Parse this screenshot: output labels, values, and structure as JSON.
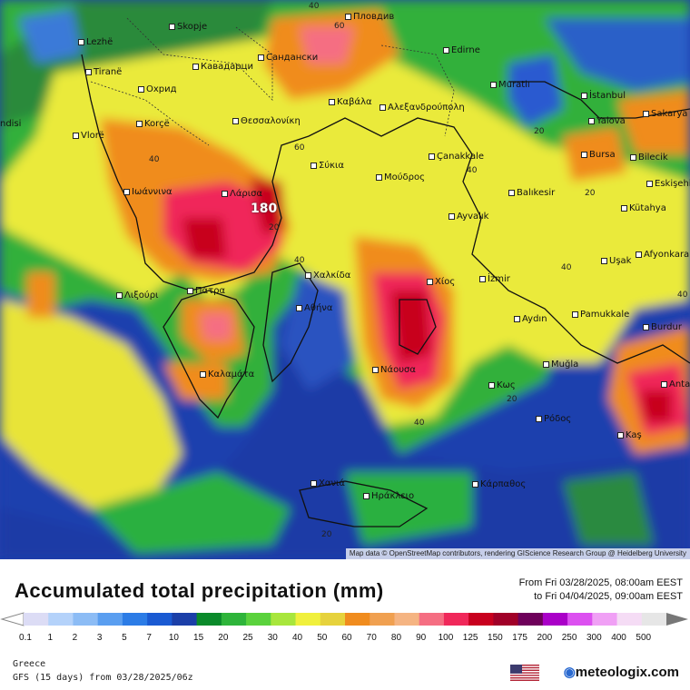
{
  "map": {
    "attribution": "Map data © OpenStreetMap contributors, rendering GIScience Research Group @ Heidelberg University",
    "max_label": "180",
    "cities": [
      {
        "name": "Lezhë"
      },
      {
        "name": "Skopje"
      },
      {
        "name": "Пловдив"
      },
      {
        "name": "Tiranë"
      },
      {
        "name": "Кавадарци"
      },
      {
        "name": "Сандански"
      },
      {
        "name": "Edirne"
      },
      {
        "name": "Охрид"
      },
      {
        "name": "Korçë"
      },
      {
        "name": "Καβάλα"
      },
      {
        "name": "Αλεξανδρούπολη"
      },
      {
        "name": "Muratlı"
      },
      {
        "name": "İstanbul"
      },
      {
        "name": "ndisi"
      },
      {
        "name": "Vlorë"
      },
      {
        "name": "Θεσσαλονίκη"
      },
      {
        "name": "Yalova"
      },
      {
        "name": "Sakarya"
      },
      {
        "name": "Çanakkale"
      },
      {
        "name": "Bursa"
      },
      {
        "name": "Bilecik"
      },
      {
        "name": "Σύκια"
      },
      {
        "name": "Μούδρος"
      },
      {
        "name": "Balıkesir"
      },
      {
        "name": "Eskişehir"
      },
      {
        "name": "Ιωάννινα"
      },
      {
        "name": "Λάρισα"
      },
      {
        "name": "Ayvalık"
      },
      {
        "name": "Kütahya"
      },
      {
        "name": "Χαλκίδα"
      },
      {
        "name": "Afyonkarahisar"
      },
      {
        "name": "Uşak"
      },
      {
        "name": "Χίος"
      },
      {
        "name": "İzmir"
      },
      {
        "name": "Λιξούρι"
      },
      {
        "name": "Πάτρα"
      },
      {
        "name": "Αθήνα"
      },
      {
        "name": "Aydın"
      },
      {
        "name": "Pamukkale"
      },
      {
        "name": "Burdur"
      },
      {
        "name": "Καλαμάτα"
      },
      {
        "name": "Νάουσα"
      },
      {
        "name": "Muğla"
      },
      {
        "name": "Κως"
      },
      {
        "name": "Antal"
      },
      {
        "name": "Ρόδος"
      },
      {
        "name": "Kaş"
      },
      {
        "name": "Χανιά"
      },
      {
        "name": "Κάρπαθος"
      },
      {
        "name": "Ηράκλειο"
      }
    ],
    "contour_labels": [
      "40",
      "60",
      "60",
      "20",
      "40",
      "20",
      "40",
      "40",
      "20",
      "40",
      "40",
      "40",
      "20",
      "20"
    ]
  },
  "legend": {
    "title": "Accumulated total precipitation (mm)",
    "from": "From Fri 03/28/2025, 08:00am EEST",
    "to": "to Fri 04/04/2025, 09:00am EEST",
    "ticks": [
      "0.1",
      "1",
      "2",
      "3",
      "5",
      "7",
      "10",
      "15",
      "20",
      "25",
      "30",
      "40",
      "50",
      "60",
      "70",
      "80",
      "90",
      "100",
      "125",
      "150",
      "175",
      "200",
      "250",
      "300",
      "400",
      "500"
    ],
    "colors": [
      "#dcdcf5",
      "#b4d2fa",
      "#8cbcf5",
      "#5a9ef0",
      "#2c7ce6",
      "#1a5ad2",
      "#1b3fa8",
      "#0a8a2a",
      "#2eb43a",
      "#5ad23c",
      "#a8e63c",
      "#f0f03c",
      "#e6d23c",
      "#f08c1e",
      "#f0a050",
      "#f5b482",
      "#f56e82",
      "#f0285a",
      "#c8001e",
      "#a00028",
      "#6e005a",
      "#aa00c8",
      "#dc50f0",
      "#f0a0f5",
      "#f5dcf5",
      "#e6e6e6"
    ]
  },
  "footer": {
    "region": "Greece",
    "model": "GFS (15 days) from  03/28/2025/06z",
    "brand": "meteologix.com"
  }
}
